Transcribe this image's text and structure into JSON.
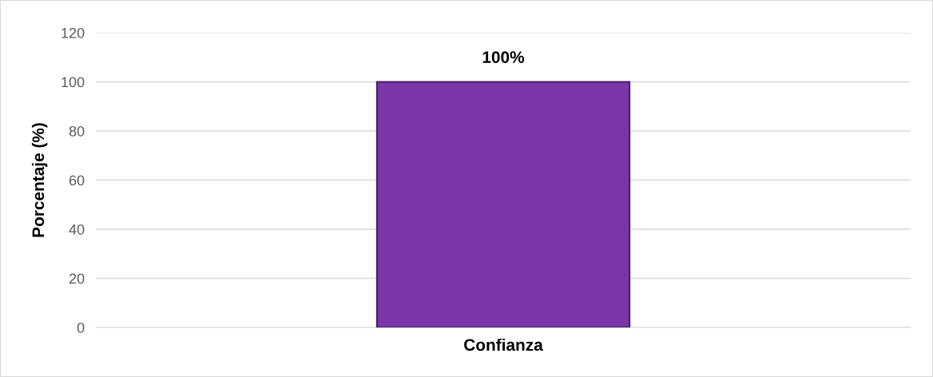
{
  "chart_data": {
    "type": "bar",
    "ylabel": "Porcentaje (%)",
    "categories": [
      "Confianza"
    ],
    "values": [
      100
    ],
    "color": "#7a35a8",
    "value_labels": [
      "100%"
    ],
    "ylim": [
      0,
      120
    ],
    "yticks": [
      0,
      20,
      40,
      60,
      80,
      100,
      120
    ],
    "grid": "y"
  }
}
